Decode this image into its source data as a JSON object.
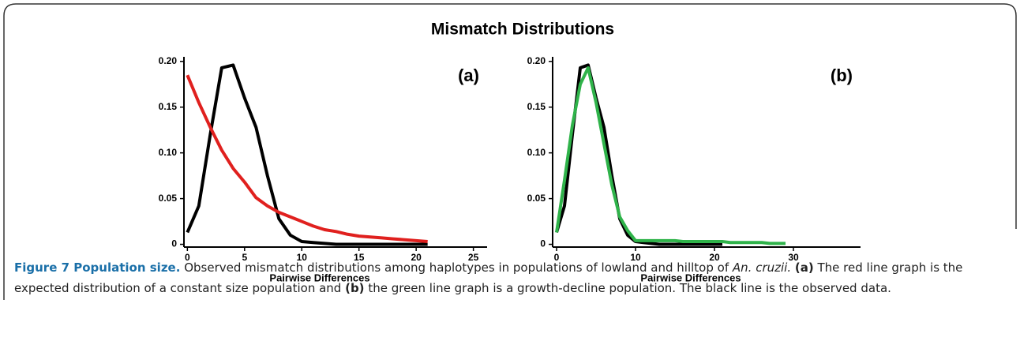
{
  "title": "Mismatch Distributions",
  "chart_data": [
    {
      "type": "line",
      "annotation": "(a)",
      "x_label": "Pairwise Differences",
      "xlim": [
        -0.3,
        26.2
      ],
      "xticks": [
        0,
        5,
        10,
        15,
        20,
        25
      ],
      "ylim": [
        -0.003,
        0.205
      ],
      "yticks": [
        0,
        0.05,
        {
          "value": 0.1,
          "label": "0.10"
        },
        0.15,
        {
          "value": 0.2,
          "label": "0.20"
        }
      ],
      "series": [
        {
          "color": "#000000",
          "x": [
            0,
            1,
            2,
            3,
            4,
            5,
            6,
            7,
            8,
            9,
            10,
            11,
            12,
            13,
            14,
            15,
            16,
            17,
            18,
            19,
            20,
            21
          ],
          "values": [
            0.013,
            0.042,
            0.12,
            0.193,
            0.196,
            0.16,
            0.128,
            0.075,
            0.028,
            0.01,
            0.003,
            0.002,
            0.001,
            0,
            0,
            0,
            0,
            0,
            0,
            0,
            0,
            0
          ]
        },
        {
          "color": "#e0201e",
          "x": [
            0,
            1,
            2,
            3,
            4,
            5,
            6,
            7,
            8,
            9,
            10,
            11,
            12,
            13,
            14,
            15,
            16,
            17,
            18,
            19,
            20,
            21
          ],
          "values": [
            0.185,
            0.155,
            0.128,
            0.103,
            0.083,
            0.068,
            0.051,
            0.042,
            0.035,
            0.03,
            0.025,
            0.02,
            0.016,
            0.014,
            0.011,
            0.009,
            0.008,
            0.007,
            0.006,
            0.005,
            0.004,
            0.003
          ]
        }
      ]
    },
    {
      "type": "line",
      "annotation": "(b)",
      "x_label": "Pairwise Differences",
      "xlim": [
        -0.5,
        38.5
      ],
      "xticks": [
        0,
        10,
        20,
        30
      ],
      "ylim": [
        -0.003,
        0.205
      ],
      "yticks": [
        0,
        0.05,
        {
          "value": 0.1,
          "label": "0.10"
        },
        0.15,
        {
          "value": 0.2,
          "label": "0.20"
        }
      ],
      "series": [
        {
          "color": "#000000",
          "x": [
            0,
            1,
            2,
            3,
            4,
            5,
            6,
            7,
            8,
            9,
            10,
            11,
            12,
            13,
            14,
            15,
            16,
            17,
            18,
            19,
            20,
            21
          ],
          "values": [
            0.013,
            0.042,
            0.12,
            0.193,
            0.196,
            0.16,
            0.128,
            0.075,
            0.028,
            0.01,
            0.003,
            0.002,
            0.001,
            0,
            0,
            0,
            0,
            0,
            0,
            0,
            0,
            0
          ]
        },
        {
          "color": "#2fb34a",
          "x": [
            0,
            1,
            2,
            3,
            4,
            5,
            6,
            7,
            8,
            9,
            10,
            11,
            12,
            13,
            14,
            15,
            16,
            17,
            18,
            19,
            20,
            21,
            22,
            23,
            24,
            25,
            26,
            27,
            28,
            29
          ],
          "values": [
            0.013,
            0.07,
            0.13,
            0.175,
            0.193,
            0.155,
            0.11,
            0.065,
            0.03,
            0.015,
            0.004,
            0.004,
            0.004,
            0.004,
            0.004,
            0.004,
            0.003,
            0.003,
            0.003,
            0.003,
            0.003,
            0.003,
            0.002,
            0.002,
            0.002,
            0.002,
            0.002,
            0.001,
            0.001,
            0.001
          ]
        }
      ]
    }
  ],
  "caption": {
    "label": "Figure 7 Population size.",
    "parts": [
      "Observed mismatch distributions among haplotypes in populations of lowland and hilltop of",
      "An. cruzii.",
      "(a)",
      "The red line graph is the expected distribution of a constant size population and",
      "(b)",
      "the green line graph is a growth-decline population. The black line is the observed data."
    ]
  }
}
